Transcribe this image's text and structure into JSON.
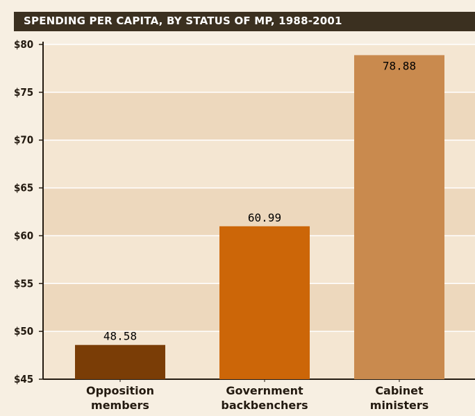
{
  "chart_data": {
    "type": "bar",
    "title": "SPENDING PER CAPITA, BY STATUS OF MP, 1988-2001",
    "categories": [
      [
        "Opposition",
        "members"
      ],
      [
        "Government",
        "backbenchers"
      ],
      [
        "Cabinet",
        "ministers"
      ]
    ],
    "values": [
      48.58,
      60.99,
      78.88
    ],
    "value_labels": [
      "48.58",
      "60.99",
      "78.88"
    ],
    "bar_colors": [
      "#7a3d06",
      "#cc6608",
      "#c98a4e"
    ],
    "ylim": [
      45,
      80
    ],
    "yticks": [
      45,
      50,
      55,
      60,
      65,
      70,
      75,
      80
    ],
    "ytick_labels": [
      "$45",
      "$50",
      "$55",
      "$60",
      "$65",
      "$70",
      "$75",
      "$80"
    ],
    "xlabel": "",
    "ylabel": "",
    "grid": true,
    "band_colors": [
      "#edd8bd",
      "#f4e6d2"
    ]
  }
}
